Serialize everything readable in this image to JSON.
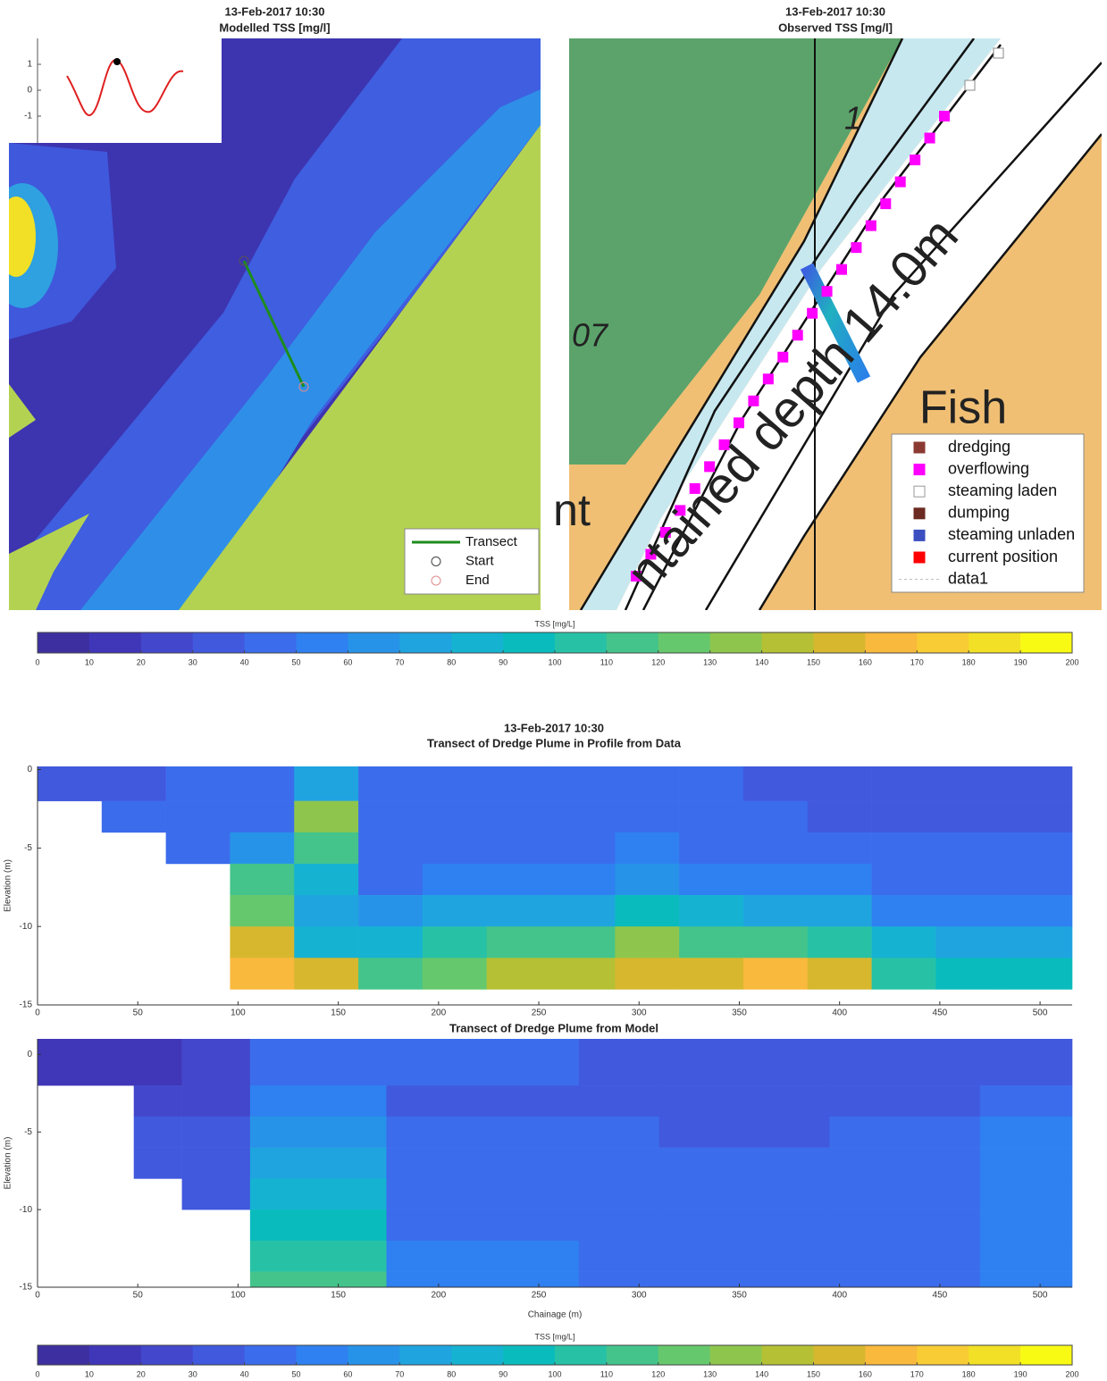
{
  "chart_data": [
    {
      "type": "map",
      "title": "13-Feb-2017 10:30",
      "subtitle": "Modelled TSS [mg/l]",
      "inset": {
        "ylim": [
          -1.5,
          1.5
        ],
        "yticks": [
          1,
          0,
          -1
        ]
      },
      "legend": [
        {
          "name": "Transect",
          "color": "#1e8c1e"
        },
        {
          "name": "Start",
          "color": "#444444"
        },
        {
          "name": "End",
          "color": "#e08c8c"
        }
      ]
    },
    {
      "type": "map",
      "title": "13-Feb-2017 10:30",
      "subtitle": "Observed TSS [mg/l]",
      "map_labels": [
        "1",
        "07",
        "Fish",
        "ntained depth 14.0m",
        "nt"
      ],
      "legend": [
        {
          "name": "dredging",
          "color": "#8b3a32"
        },
        {
          "name": "overflowing",
          "color": "#ff00ff"
        },
        {
          "name": "steaming laden",
          "color": "#ffffff"
        },
        {
          "name": "dumping",
          "color": "#6b2a22"
        },
        {
          "name": "steaming unladen",
          "color": "#3b4fc0"
        },
        {
          "name": "current position",
          "color": "#ff0000"
        },
        {
          "name": "data1",
          "color": "#bbbbbb"
        }
      ]
    },
    {
      "type": "colorbar",
      "label": "TSS [mg/L]",
      "xlim": [
        0,
        200
      ],
      "xticks": [
        0,
        10,
        20,
        30,
        40,
        50,
        60,
        70,
        80,
        90,
        100,
        110,
        120,
        130,
        140,
        150,
        160,
        170,
        180,
        190,
        200
      ],
      "colors": [
        "#3d2fa0",
        "#4036b8",
        "#4247cb",
        "#4159dd",
        "#3b6cec",
        "#2f80f0",
        "#2793e8",
        "#1fa4e0",
        "#16b2d2",
        "#0abbbe",
        "#27c2a6",
        "#44c48b",
        "#66c86c",
        "#8ec64d",
        "#b5c034",
        "#d7b72e",
        "#f8b93d",
        "#f8cc34",
        "#f2e026",
        "#f9fa14"
      ]
    },
    {
      "type": "heatmap",
      "title": "13-Feb-2017 10:30",
      "subtitle": "Transect of Dredge Plume in Profile from Data",
      "ylabel": "Elevation (m)",
      "xlim": [
        0,
        516
      ],
      "ylim": [
        -15,
        0.2
      ],
      "xticks": [
        0,
        50,
        100,
        150,
        200,
        250,
        300,
        350,
        400,
        450,
        500
      ],
      "yticks": [
        0,
        -5,
        -10,
        -15
      ],
      "x": [
        0,
        32,
        64,
        96,
        128,
        160,
        192,
        224,
        256,
        288,
        320,
        352,
        384,
        416,
        448,
        480,
        516
      ],
      "y": [
        0.2,
        -2,
        -4,
        -6,
        -8,
        -10,
        -12,
        -14
      ],
      "values": [
        [
          35,
          38,
          40,
          40,
          70,
          45,
          42,
          42,
          40,
          40,
          40,
          38,
          35,
          35,
          35,
          35
        ],
        [
          null,
          40,
          42,
          45,
          130,
          45,
          42,
          45,
          42,
          42,
          42,
          40,
          38,
          38,
          38,
          38
        ],
        [
          null,
          null,
          45,
          60,
          110,
          45,
          45,
          45,
          45,
          50,
          45,
          45,
          42,
          42,
          42,
          42
        ],
        [
          null,
          null,
          null,
          110,
          80,
          45,
          50,
          50,
          50,
          60,
          55,
          55,
          50,
          45,
          45,
          45
        ],
        [
          null,
          null,
          null,
          120,
          70,
          60,
          70,
          75,
          70,
          90,
          80,
          75,
          70,
          55,
          55,
          55
        ],
        [
          null,
          null,
          null,
          150,
          80,
          80,
          100,
          110,
          110,
          130,
          110,
          110,
          100,
          80,
          75,
          75
        ],
        [
          null,
          null,
          null,
          160,
          150,
          110,
          120,
          140,
          140,
          150,
          150,
          160,
          150,
          100,
          90,
          90
        ]
      ]
    },
    {
      "type": "heatmap",
      "title": "Transect of Dredge Plume from Model",
      "ylabel": "Elevation (m)",
      "xlabel": "Chainage (m)",
      "xlim": [
        0,
        516
      ],
      "ylim": [
        -15,
        1
      ],
      "xticks": [
        0,
        50,
        100,
        150,
        200,
        250,
        300,
        350,
        400,
        450,
        500
      ],
      "yticks": [
        0,
        -5,
        -10,
        -15
      ],
      "x": [
        0,
        48,
        72,
        106,
        174,
        270,
        310,
        395,
        470,
        516
      ],
      "y": [
        1,
        -2,
        -4,
        -6,
        -8,
        -10,
        -12,
        -14,
        -15
      ],
      "values": [
        [
          12,
          15,
          22,
          45,
          40,
          35,
          35,
          35,
          35
        ],
        [
          null,
          28,
          28,
          55,
          38,
          38,
          30,
          38,
          40
        ],
        [
          null,
          30,
          35,
          60,
          40,
          40,
          38,
          40,
          50
        ],
        [
          null,
          35,
          35,
          70,
          42,
          40,
          40,
          45,
          50
        ],
        [
          null,
          null,
          38,
          85,
          45,
          40,
          40,
          45,
          50
        ],
        [
          null,
          null,
          null,
          95,
          45,
          40,
          40,
          45,
          50
        ],
        [
          null,
          null,
          null,
          100,
          50,
          45,
          40,
          45,
          50
        ],
        [
          null,
          null,
          null,
          110,
          50,
          45,
          40,
          45,
          50
        ]
      ]
    },
    {
      "type": "colorbar",
      "label": "TSS [mg/L]",
      "xlim": [
        0,
        200
      ],
      "xticks": [
        0,
        10,
        20,
        30,
        40,
        50,
        60,
        70,
        80,
        90,
        100,
        110,
        120,
        130,
        140,
        150,
        160,
        170,
        180,
        190,
        200
      ],
      "colors": [
        "#3d2fa0",
        "#4036b8",
        "#4247cb",
        "#4159dd",
        "#3b6cec",
        "#2f80f0",
        "#2793e8",
        "#1fa4e0",
        "#16b2d2",
        "#0abbbe",
        "#27c2a6",
        "#44c48b",
        "#66c86c",
        "#8ec64d",
        "#b5c034",
        "#d7b72e",
        "#f8b93d",
        "#f8cc34",
        "#f2e026",
        "#f9fa14"
      ]
    }
  ]
}
